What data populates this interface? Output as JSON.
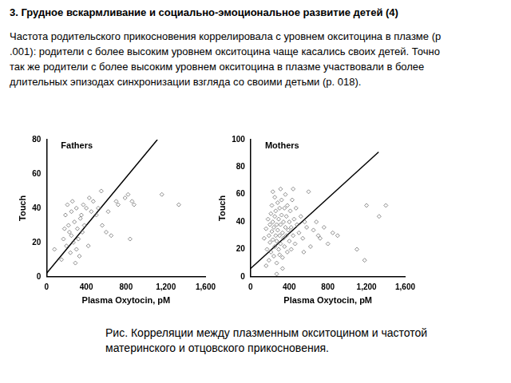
{
  "heading": "3. Грудное вскармливание и социально-эмоциональное развитие детей (4)",
  "paragraph": "Частота родительского прикосновения коррелировала с уровнем окситоцина в плазме (p .001): родители с более высоким уровнем окситоцина чаще касались своих детей. Точно так же родители с более высоким уровнем окситоцина в плазме участвовали в более длительных эпизодах синхронизации взгляда со своими детьми (p. 018).",
  "caption": "Рис. Корреляции между плазменным окситоцином и частотой материнского и отцовского прикосновения.",
  "chart_data": [
    {
      "type": "scatter",
      "title": "Fathers",
      "x_label": "Plasma Oxytocin, pM",
      "y_label": "Touch",
      "xlim": [
        0,
        1600
      ],
      "xticks": [
        0,
        400,
        800,
        {
          "value": 1200,
          "label": "1,200"
        },
        {
          "value": 1600,
          "label": "1,600"
        }
      ],
      "ylim": [
        0,
        80
      ],
      "yticks": [
        0,
        20,
        40,
        60,
        80
      ],
      "grid": false,
      "series": [
        {
          "marker": "diamond",
          "color": "#707070",
          "x": [
            80,
            150,
            170,
            180,
            190,
            200,
            210,
            220,
            230,
            240,
            250,
            250,
            260,
            270,
            280,
            290,
            300,
            300,
            310,
            320,
            330,
            340,
            350,
            360,
            370,
            380,
            400,
            420,
            430,
            450,
            470,
            500,
            520,
            550,
            560,
            600,
            620,
            650,
            700,
            720,
            790,
            820,
            840,
            860,
            880,
            1160,
            1330
          ],
          "values": [
            16,
            10,
            22,
            28,
            36,
            18,
            42,
            30,
            26,
            14,
            24,
            38,
            44,
            20,
            32,
            8,
            16,
            40,
            28,
            22,
            12,
            34,
            36,
            26,
            42,
            30,
            40,
            18,
            46,
            38,
            44,
            36,
            40,
            50,
            30,
            26,
            38,
            24,
            44,
            42,
            46,
            48,
            22,
            44,
            42,
            48,
            42
          ]
        },
        {
          "type": "line",
          "color": "#000000",
          "x": [
            0,
            1115
          ],
          "values": [
            2,
            80
          ]
        }
      ]
    },
    {
      "type": "scatter",
      "title": "Mothers",
      "x_label": "Plasma Oxytocin, pM",
      "y_label": "Touch",
      "xlim": [
        0,
        1600
      ],
      "xticks": [
        0,
        400,
        800,
        {
          "value": 1200,
          "label": "1,200"
        },
        {
          "value": 1600,
          "label": "1,600"
        }
      ],
      "ylim": [
        0,
        100
      ],
      "yticks": [
        0,
        20,
        40,
        60,
        80,
        100
      ],
      "grid": false,
      "series": [
        {
          "marker": "diamond",
          "color": "#707070",
          "x": [
            140,
            160,
            170,
            180,
            190,
            190,
            200,
            200,
            210,
            210,
            220,
            220,
            230,
            230,
            240,
            240,
            250,
            250,
            250,
            260,
            260,
            270,
            270,
            270,
            280,
            280,
            290,
            290,
            300,
            300,
            300,
            310,
            310,
            320,
            320,
            330,
            330,
            340,
            340,
            350,
            350,
            360,
            360,
            370,
            370,
            380,
            380,
            390,
            400,
            400,
            410,
            420,
            420,
            430,
            440,
            450,
            460,
            470,
            480,
            500,
            520,
            540,
            560,
            580,
            600,
            620,
            650,
            680,
            700,
            720,
            760,
            800,
            850,
            900,
            1100,
            1180,
            1200,
            1330,
            1400,
            160,
            230,
            310,
            440,
            550,
            270,
            330
          ],
          "values": [
            28,
            35,
            20,
            42,
            30,
            12,
            38,
            25,
            46,
            18,
            33,
            52,
            27,
            40,
            15,
            36,
            22,
            44,
            58,
            30,
            48,
            10,
            38,
            26,
            54,
            34,
            20,
            42,
            30,
            50,
            16,
            38,
            24,
            45,
            56,
            32,
            14,
            40,
            28,
            50,
            22,
            36,
            60,
            30,
            44,
            18,
            52,
            34,
            40,
            26,
            48,
            20,
            36,
            56,
            30,
            42,
            24,
            50,
            38,
            32,
            44,
            28,
            40,
            36,
            62,
            22,
            34,
            40,
            30,
            28,
            36,
            24,
            32,
            30,
            20,
            12,
            52,
            44,
            52,
            8,
            62,
            64,
            64,
            18,
            2,
            6
          ]
        },
        {
          "type": "line",
          "color": "#000000",
          "x": [
            0,
            1325
          ],
          "values": [
            6,
            91
          ]
        }
      ]
    }
  ]
}
